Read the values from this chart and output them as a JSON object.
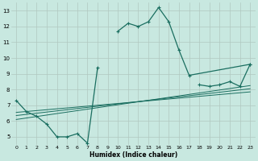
{
  "xlabel": "Humidex (Indice chaleur)",
  "background_color": "#c8e8e0",
  "grid_color": "#b0c8c0",
  "line_color": "#1a6e60",
  "xlim": [
    -0.5,
    23.5
  ],
  "ylim": [
    4.5,
    13.5
  ],
  "xticks": [
    0,
    1,
    2,
    3,
    4,
    5,
    6,
    7,
    8,
    9,
    10,
    11,
    12,
    13,
    14,
    15,
    16,
    17,
    18,
    19,
    20,
    21,
    22,
    23
  ],
  "yticks": [
    5,
    6,
    7,
    8,
    9,
    10,
    11,
    12,
    13
  ],
  "main_x": [
    0,
    1,
    2,
    3,
    4,
    5,
    6,
    7,
    8,
    10,
    11,
    12,
    13,
    14,
    15,
    16,
    17,
    23
  ],
  "main_y": [
    7.3,
    6.6,
    6.3,
    5.8,
    5.0,
    5.0,
    5.2,
    4.6,
    9.4,
    11.7,
    12.2,
    12.0,
    12.3,
    13.2,
    12.3,
    10.5,
    8.9,
    9.6
  ],
  "line2_x": [
    18,
    19,
    20,
    21,
    22
  ],
  "line2_y": [
    8.3,
    8.2,
    8.3,
    8.5,
    8.2
  ],
  "reg1_y_start": 6.1,
  "reg1_y_end": 8.25,
  "reg2_y_start": 6.35,
  "reg2_y_end": 8.05,
  "reg3_y_start": 6.55,
  "reg3_y_end": 7.85
}
